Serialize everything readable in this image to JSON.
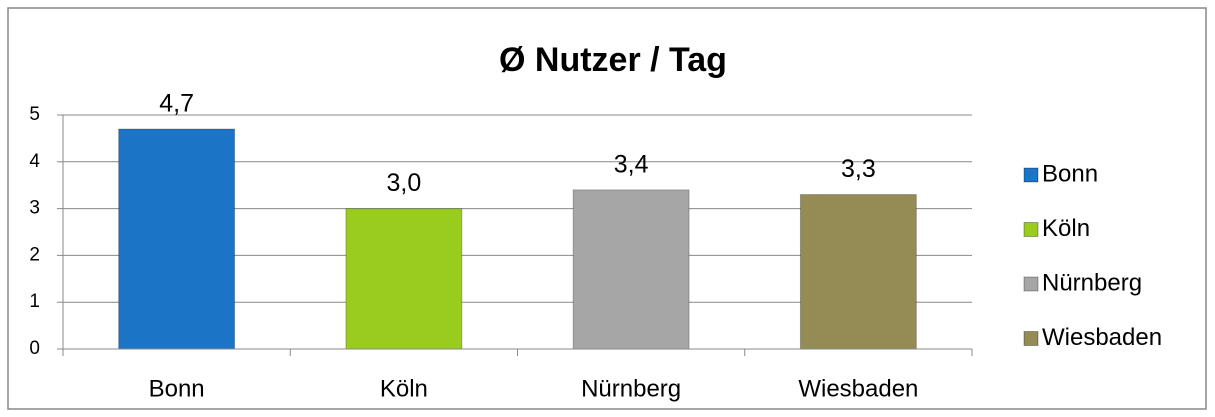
{
  "chart_data": {
    "type": "bar",
    "title": "Ø Nutzer / Tag",
    "categories": [
      "Bonn",
      "Köln",
      "Nürnberg",
      "Wiesbaden"
    ],
    "values": [
      4.7,
      3.0,
      3.4,
      3.3
    ],
    "value_labels": [
      "4,7",
      "3,0",
      "3,4",
      "3,3"
    ],
    "colors": [
      "#1b74c6",
      "#9acb1f",
      "#a6a6a6",
      "#958b55"
    ],
    "ylim": [
      0,
      5
    ],
    "yticks": [
      0,
      1,
      2,
      3,
      4,
      5
    ],
    "grid": true,
    "legend": "right"
  }
}
